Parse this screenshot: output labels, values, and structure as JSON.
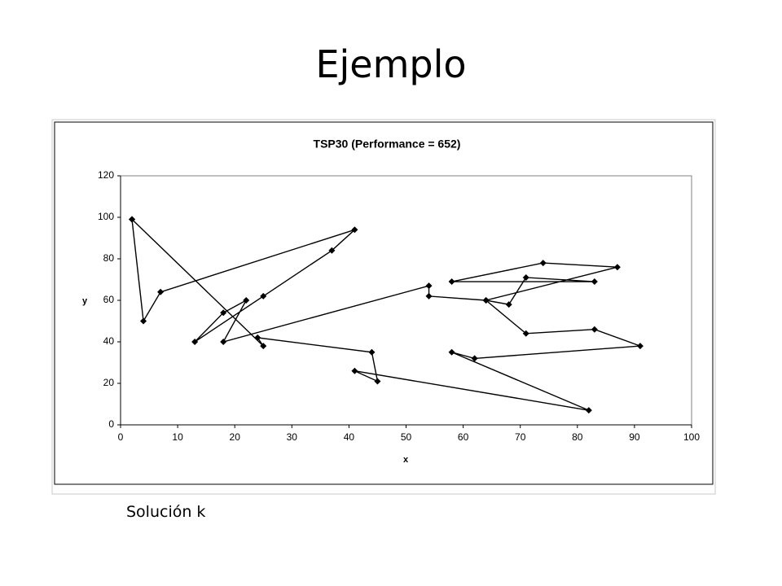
{
  "header": {
    "title": "Ejemplo"
  },
  "caption": "Solución k",
  "chart_data": {
    "type": "line",
    "title": "TSP30 (Performance = 652)",
    "x_label": "x",
    "y_label": "y",
    "xlim": [
      0,
      100
    ],
    "ylim": [
      0,
      120
    ],
    "xticks": [
      0,
      10,
      20,
      30,
      40,
      50,
      60,
      70,
      80,
      90,
      100
    ],
    "yticks": [
      0,
      20,
      40,
      60,
      80,
      100,
      120
    ],
    "color": "#000000",
    "marker": "diamond",
    "x": [
      2,
      4,
      7,
      41,
      37,
      25,
      13,
      18,
      22,
      18,
      54,
      54,
      64,
      68,
      71,
      83,
      58,
      74,
      87,
      64,
      71,
      83,
      91,
      62,
      58,
      82,
      41,
      45,
      44,
      24,
      25,
      2
    ],
    "values": [
      99,
      50,
      64,
      94,
      84,
      62,
      40,
      54,
      60,
      40,
      67,
      62,
      60,
      58,
      71,
      69,
      69,
      78,
      76,
      60,
      44,
      46,
      38,
      32,
      35,
      7,
      26,
      21,
      35,
      42,
      38,
      99
    ]
  }
}
